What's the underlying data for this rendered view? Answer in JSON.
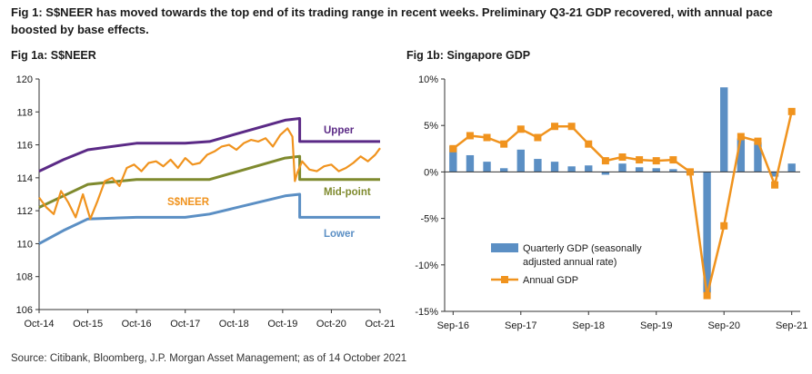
{
  "header": {
    "title": "Fig 1: S$NEER has moved towards the top end of its trading range in recent weeks.  Preliminary Q3-21 GDP recovered, with annual pace boosted by base effects."
  },
  "fig1a": {
    "title": "Fig 1a: S$NEER"
  },
  "fig1b": {
    "title": "Fig 1b: Singapore GDP"
  },
  "source": "Source: Citibank, Bloomberg, J.P. Morgan Asset Management; as of 14 October 2021",
  "colors": {
    "upper": "#5b2a86",
    "midpoint": "#7f8a2e",
    "lower": "#5b8fc4",
    "sneer": "#f0931e",
    "bar": "#5b8fc4",
    "annual": "#f0931e"
  },
  "chart_data": [
    {
      "type": "line",
      "title": "Fig 1a: S$NEER",
      "ylim": [
        106,
        120
      ],
      "yticks": [
        "106",
        "108",
        "110",
        "112",
        "114",
        "116",
        "118",
        "120"
      ],
      "xticks": [
        "Oct-14",
        "Oct-15",
        "Oct-16",
        "Oct-17",
        "Oct-18",
        "Oct-19",
        "Oct-20",
        "Oct-21"
      ],
      "x_unit": "years since Oct-14",
      "grid": false,
      "series": [
        {
          "name": "Upper",
          "x": [
            0,
            0.5,
            1,
            2,
            3,
            3.5,
            5.05,
            5.35,
            5.35,
            7
          ],
          "values": [
            114.4,
            115.1,
            115.7,
            116.1,
            116.1,
            116.2,
            117.5,
            117.6,
            116.2,
            116.2
          ]
        },
        {
          "name": "Mid-point",
          "x": [
            0,
            0.5,
            1,
            2,
            3,
            3.5,
            5.05,
            5.35,
            5.35,
            7
          ],
          "values": [
            112.2,
            112.9,
            113.6,
            113.9,
            113.9,
            113.9,
            115.2,
            115.3,
            113.9,
            113.9
          ]
        },
        {
          "name": "Lower",
          "x": [
            0,
            0.5,
            1,
            2,
            3,
            3.5,
            5.05,
            5.35,
            5.35,
            7
          ],
          "values": [
            110.0,
            110.8,
            111.5,
            111.6,
            111.6,
            111.8,
            112.9,
            113.0,
            111.6,
            111.6
          ]
        },
        {
          "name": "S$NEER",
          "x": [
            0,
            0.15,
            0.3,
            0.45,
            0.6,
            0.75,
            0.9,
            1.05,
            1.2,
            1.35,
            1.5,
            1.65,
            1.8,
            1.95,
            2.1,
            2.25,
            2.4,
            2.55,
            2.7,
            2.85,
            3.0,
            3.15,
            3.3,
            3.45,
            3.6,
            3.75,
            3.9,
            4.05,
            4.2,
            4.35,
            4.5,
            4.65,
            4.8,
            4.95,
            5.1,
            5.2,
            5.25,
            5.3,
            5.4,
            5.55,
            5.7,
            5.85,
            6.0,
            6.15,
            6.3,
            6.45,
            6.6,
            6.75,
            6.9,
            7.0
          ],
          "values": [
            112.8,
            112.2,
            111.8,
            113.2,
            112.5,
            111.6,
            113.0,
            111.5,
            112.6,
            113.8,
            114.0,
            113.5,
            114.6,
            114.8,
            114.4,
            114.9,
            115.0,
            114.7,
            115.1,
            114.6,
            115.2,
            114.8,
            114.9,
            115.4,
            115.6,
            115.9,
            116.0,
            115.7,
            116.1,
            116.3,
            116.2,
            116.4,
            115.9,
            116.6,
            117.0,
            116.5,
            113.8,
            114.3,
            115.0,
            114.5,
            114.4,
            114.7,
            114.8,
            114.4,
            114.6,
            114.9,
            115.3,
            115.0,
            115.4,
            115.8
          ]
        }
      ]
    },
    {
      "type": "bar",
      "title": "Fig 1b: Singapore GDP",
      "ylim": [
        -15,
        10
      ],
      "yticks": [
        "-15%",
        "-10%",
        "-5%",
        "0%",
        "5%",
        "10%"
      ],
      "xticks": [
        "Sep-16",
        "Sep-17",
        "Sep-18",
        "Sep-19",
        "Sep-20",
        "Sep-21"
      ],
      "categories": [
        "Sep-16",
        "Dec-16",
        "Mar-17",
        "Jun-17",
        "Sep-17",
        "Dec-17",
        "Mar-18",
        "Jun-18",
        "Sep-18",
        "Dec-18",
        "Mar-19",
        "Jun-19",
        "Sep-19",
        "Dec-19",
        "Mar-20",
        "Jun-20",
        "Sep-20",
        "Dec-20",
        "Mar-21",
        "Jun-21",
        "Sep-21"
      ],
      "grid": false,
      "legend_position": "bottom-left",
      "series": [
        {
          "name": "Quarterly GDP (seasonally adjusted annual rate)",
          "type": "bar",
          "values": [
            2.8,
            1.8,
            1.1,
            0.4,
            2.4,
            1.4,
            1.1,
            0.6,
            0.7,
            -0.3,
            0.9,
            0.5,
            0.4,
            0.3,
            -0.2,
            -13.0,
            9.1,
            3.6,
            3.2,
            -0.5,
            0.9
          ]
        },
        {
          "name": "Annual GDP",
          "type": "line",
          "values": [
            2.5,
            3.9,
            3.7,
            3.0,
            4.6,
            3.7,
            4.9,
            4.9,
            3.0,
            1.2,
            1.6,
            1.3,
            1.2,
            1.3,
            0.0,
            -13.3,
            -5.8,
            3.8,
            3.3,
            -1.4,
            6.5
          ]
        }
      ]
    }
  ],
  "labels1a": {
    "upper": "Upper",
    "midpoint": "Mid-point",
    "sneer": "S$NEER",
    "lower": "Lower"
  },
  "legend1b": {
    "quarterly_line1": "Quarterly GDP (seasonally",
    "quarterly_line2": "adjusted annual rate)",
    "annual": "Annual GDP"
  }
}
